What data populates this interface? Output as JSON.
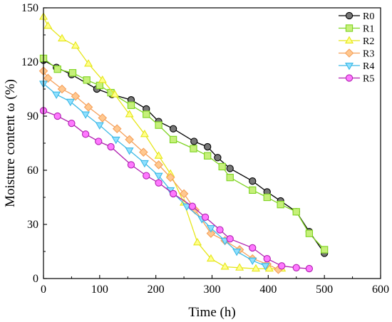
{
  "chart_data": {
    "type": "line",
    "title": "",
    "xlabel": "Time (h)",
    "ylabel": "Moisture content ω (%)",
    "xlim": [
      0,
      600
    ],
    "ylim": [
      0,
      150
    ],
    "xticks": [
      0,
      100,
      200,
      300,
      400,
      500,
      600
    ],
    "yticks": [
      0,
      30,
      60,
      90,
      120,
      150
    ],
    "grid": false,
    "legend_position": "top-right",
    "series": [
      {
        "name": "R0",
        "color": "#000000",
        "fill": "#777777",
        "marker": "circle",
        "x": [
          0,
          23,
          50,
          95,
          122,
          156,
          183,
          205,
          231,
          268,
          292,
          310,
          332,
          372,
          398,
          422,
          450,
          473,
          500
        ],
        "y": [
          121,
          117,
          113,
          105,
          102,
          99,
          94,
          87,
          83,
          76,
          73,
          67,
          61,
          54,
          48,
          43,
          37,
          26,
          14
        ]
      },
      {
        "name": "R1",
        "color": "#7ed321",
        "fill": "#c6f07a",
        "marker": "square",
        "x": [
          0,
          25,
          52,
          77,
          100,
          120,
          156,
          183,
          205,
          231,
          267,
          292,
          318,
          332,
          372,
          398,
          422,
          450,
          473,
          500
        ],
        "y": [
          122,
          116,
          114,
          110,
          107,
          103,
          96,
          91,
          85,
          77,
          72,
          68,
          62,
          56,
          49,
          45,
          41,
          37,
          25,
          16
        ]
      },
      {
        "name": "R2",
        "color": "#e6e619",
        "fill": "#ffff8c",
        "marker": "triangle-up",
        "x": [
          0,
          8,
          33,
          57,
          80,
          105,
          127,
          153,
          180,
          205,
          226,
          250,
          274,
          298,
          323,
          349,
          378,
          402,
          424
        ],
        "y": [
          145,
          140,
          133,
          129,
          119,
          110,
          102,
          91,
          80,
          68,
          58,
          42,
          20,
          11,
          6.5,
          6,
          5.5,
          5.5,
          5.5
        ]
      },
      {
        "name": "R3",
        "color": "#f5a05a",
        "fill": "#ffc890",
        "marker": "diamond",
        "x": [
          0,
          8,
          33,
          57,
          80,
          105,
          131,
          153,
          178,
          205,
          226,
          250,
          270,
          298,
          323,
          349,
          372,
          398,
          418
        ],
        "y": [
          115,
          111,
          105,
          101,
          95,
          89,
          83,
          77,
          70,
          63,
          56,
          47,
          38,
          25,
          21,
          16,
          11,
          8,
          5
        ]
      },
      {
        "name": "R4",
        "color": "#3cb9e6",
        "fill": "#8fe0ff",
        "marker": "triangle-down",
        "x": [
          0,
          23,
          48,
          75,
          100,
          129,
          153,
          180,
          205,
          226,
          255,
          282,
          298,
          323,
          344,
          372,
          395
        ],
        "y": [
          108,
          102,
          98,
          91,
          85,
          77,
          71,
          64,
          57,
          49,
          40,
          33,
          28,
          21,
          15,
          10,
          7
        ]
      },
      {
        "name": "R5",
        "color": "#b020b0",
        "fill": "#ff78ff",
        "marker": "circle",
        "x": [
          0,
          25,
          50,
          75,
          98,
          120,
          156,
          183,
          205,
          231,
          265,
          288,
          314,
          332,
          372,
          398,
          424,
          450,
          473
        ],
        "y": [
          93,
          90,
          86,
          80,
          76,
          73,
          63,
          57,
          53,
          47,
          40,
          34,
          27,
          22,
          17,
          11,
          7,
          6,
          5.5
        ]
      }
    ]
  }
}
